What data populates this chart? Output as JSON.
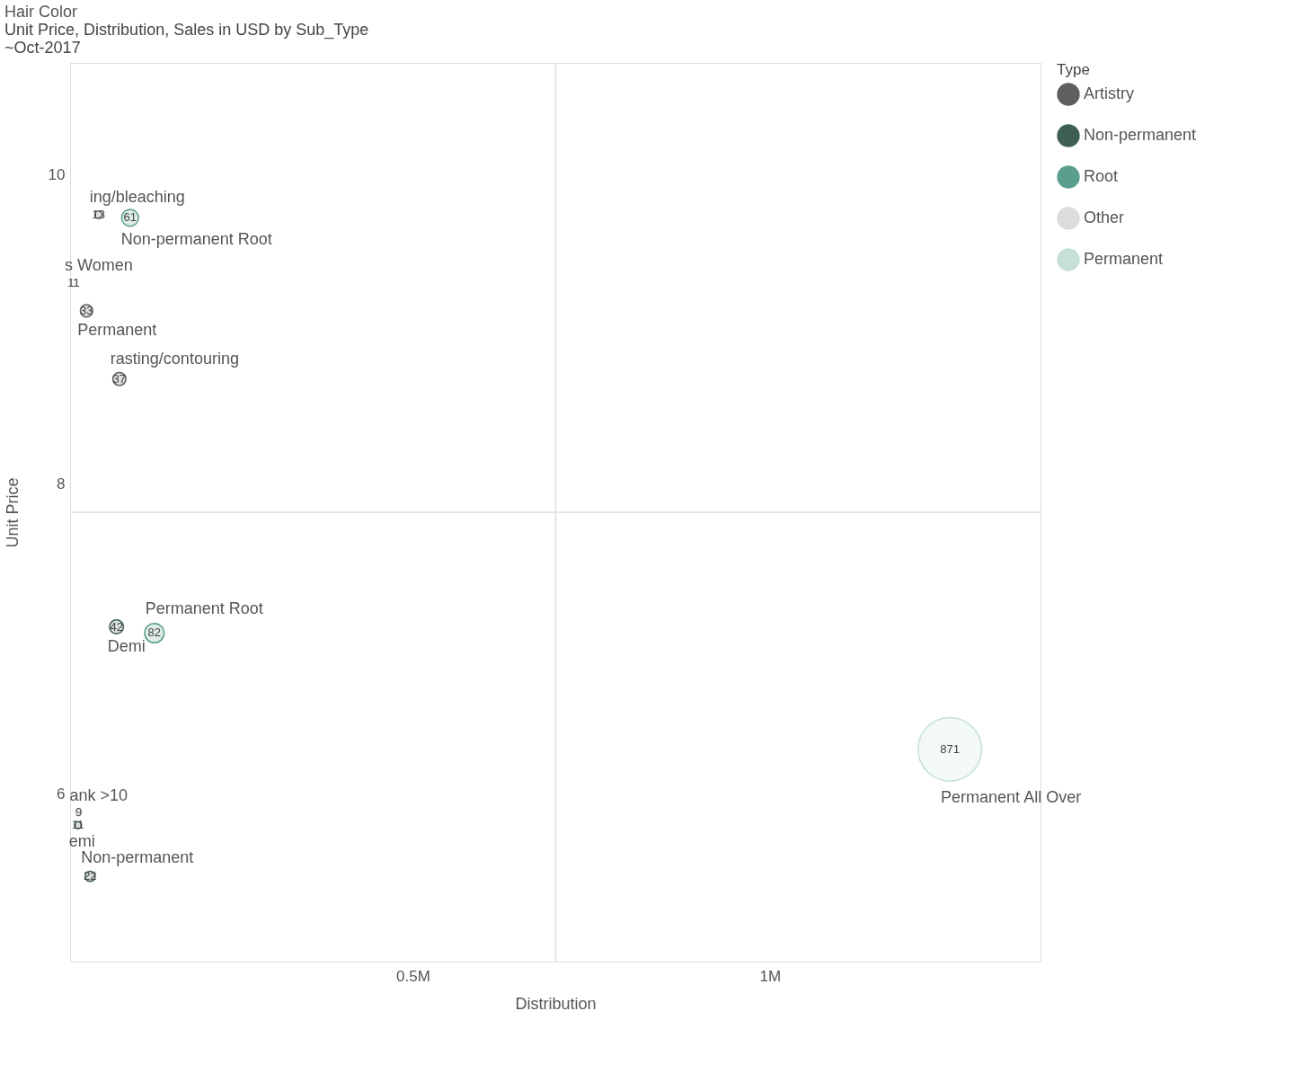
{
  "chart_data": {
    "type": "bubble",
    "title": "Hair Color",
    "subtitle": "Unit Price, Distribution, Sales in USD by Sub_Type",
    "xlabel": "Distribution",
    "ylabel": "Unit Price",
    "legend_title": "Type",
    "legend": "top right",
    "grid": false,
    "xlim": [
      20000,
      1379000
    ],
    "xticks": [
      {
        "value": 500000,
        "label": "0.5M"
      },
      {
        "value": 1000000,
        "label": "1M"
      }
    ],
    "ylim": [
      4.92,
      10.72
    ],
    "yticks": [
      6,
      8,
      10
    ],
    "ref_lines": [
      {
        "axis": "x",
        "value": 700000,
        "color": "#e6e6e6"
      },
      {
        "axis": "y",
        "value": 7.82,
        "color": "#e6e6e6"
      }
    ],
    "series": [
      {
        "name": "Artistry",
        "color": "#5f5f5f",
        "x": [
          60000,
          43000,
          89000
        ],
        "values": [
          9.74,
          9.12,
          8.68
        ],
        "sizes": [
          13,
          33,
          37
        ],
        "value_labels": [
          "13",
          "33",
          "37"
        ]
      },
      {
        "name": "Non-permanent",
        "color": "#3f5f55",
        "x": [
          85000,
          31000,
          48000
        ],
        "values": [
          7.08,
          5.8,
          5.47
        ],
        "sizes": [
          42,
          11,
          22
        ],
        "value_labels": [
          "42",
          "11",
          "22"
        ]
      },
      {
        "name": "Root",
        "color": "#5a9e8e",
        "x": [
          104000,
          138000
        ],
        "values": [
          9.72,
          7.04
        ],
        "sizes": [
          61,
          82
        ],
        "value_labels": [
          "61",
          "82"
        ]
      },
      {
        "name": "Other",
        "color": "#dcdcdc",
        "x": [
          25000,
          32000
        ],
        "values": [
          9.3,
          5.88
        ],
        "sizes": [
          11,
          9
        ],
        "value_labels": [
          "11",
          "9"
        ]
      },
      {
        "name": "Permanent",
        "color": "#c5e0d8",
        "x": [
          1252000
        ],
        "values": [
          6.29
        ],
        "sizes": [
          871
        ],
        "value_labels": [
          "871"
        ]
      }
    ],
    "annotations": [
      "~Oct-2017",
      {
        "text": "ing/bleaching",
        "x": 60000,
        "y": 9.74
      },
      {
        "text": "Non-permanent Root",
        "x": 104000,
        "y": 9.72
      },
      {
        "text": "s Women",
        "x": 25000,
        "y": 9.3
      },
      {
        "text": "Permanent",
        "x": 43000,
        "y": 9.12
      },
      {
        "text": "rasting/contouring",
        "x": 89000,
        "y": 8.68
      },
      {
        "text": "Demi",
        "x": 85000,
        "y": 7.08
      },
      {
        "text": "Permanent Root",
        "x": 138000,
        "y": 7.04
      },
      {
        "text": "Permanent All Over",
        "x": 1252000,
        "y": 6.29
      },
      {
        "text": "ank >10",
        "x": 32000,
        "y": 5.88
      },
      {
        "text": "emi",
        "x": 31000,
        "y": 5.8
      },
      {
        "text": "Non-permanent",
        "x": 48000,
        "y": 5.47
      }
    ]
  }
}
